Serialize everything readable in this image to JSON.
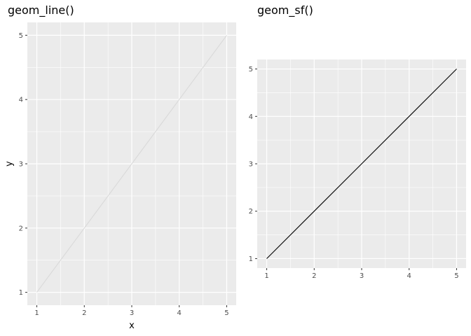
{
  "chart_data": [
    {
      "type": "line",
      "title": "geom_line()",
      "xlabel": "x",
      "ylabel": "y",
      "x": [
        1,
        2,
        3,
        4,
        5
      ],
      "y": [
        1,
        2,
        3,
        4,
        5
      ],
      "xticks": [
        "1",
        "2",
        "3",
        "4",
        "5"
      ],
      "yticks": [
        "1",
        "2",
        "3",
        "4",
        "5"
      ],
      "xlim": [
        0.8,
        5.2
      ],
      "ylim": [
        0.8,
        5.2
      ],
      "line_color": "#d9d9d9",
      "panel_color": "#ebebeb",
      "grid": true
    },
    {
      "type": "line",
      "title": "geom_sf()",
      "xlabel": "",
      "ylabel": "",
      "x": [
        1,
        2,
        3,
        4,
        5
      ],
      "y": [
        1,
        2,
        3,
        4,
        5
      ],
      "xticks": [
        "1",
        "2",
        "3",
        "4",
        "5"
      ],
      "yticks": [
        "1",
        "2",
        "3",
        "4",
        "5"
      ],
      "xlim": [
        0.8,
        5.2
      ],
      "ylim": [
        0.8,
        5.2
      ],
      "line_color": "#000000",
      "panel_color": "#ebebeb",
      "grid": true
    }
  ]
}
